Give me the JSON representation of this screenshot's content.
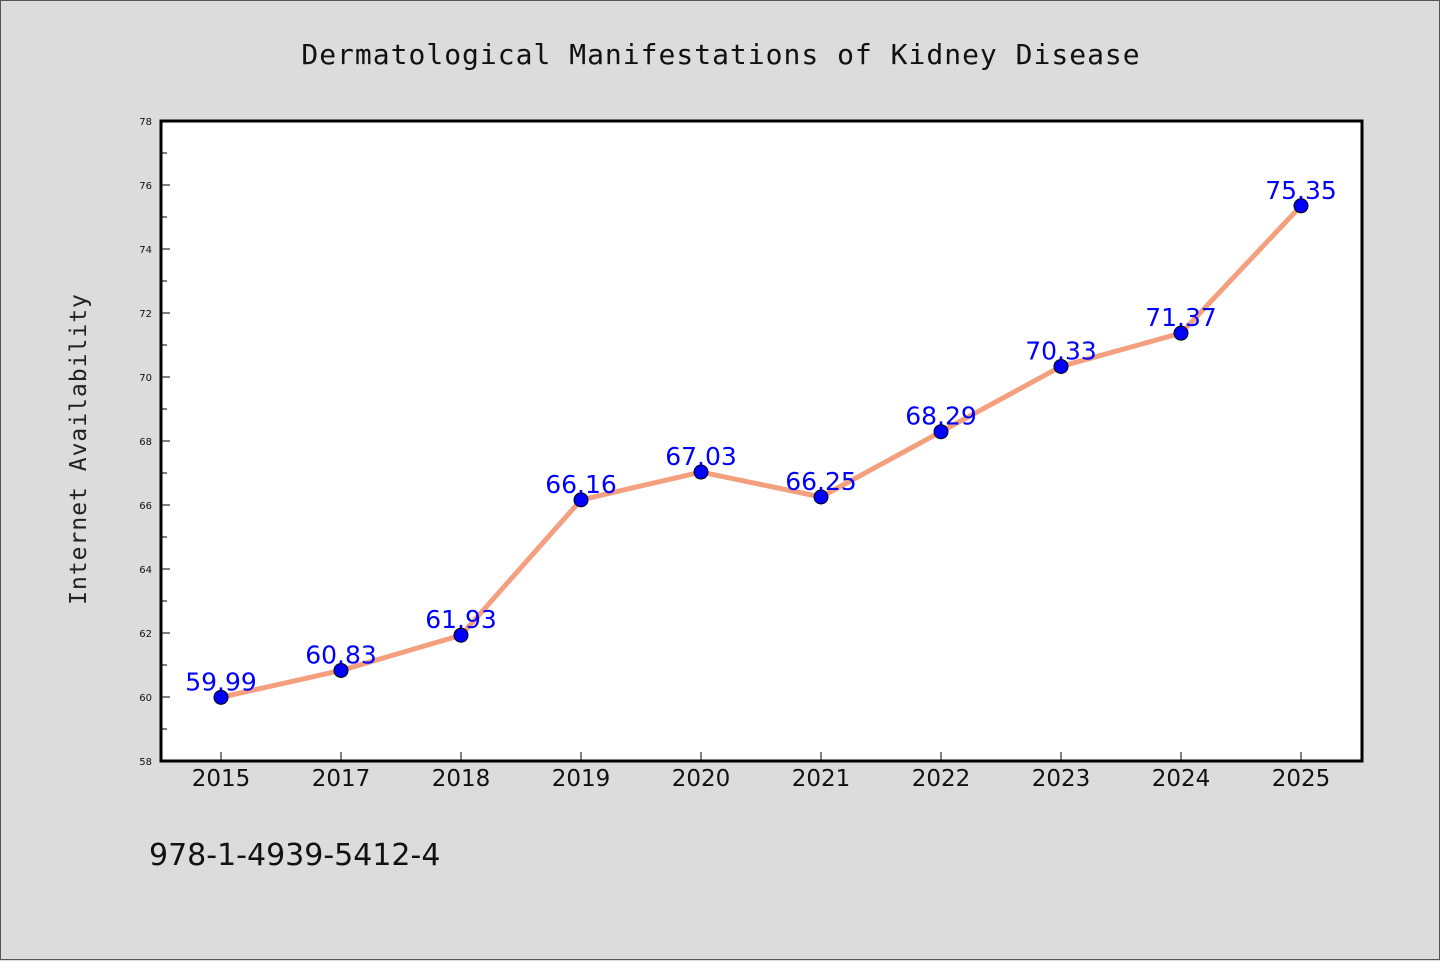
{
  "chart_data": {
    "type": "line",
    "title": "Dermatological Manifestations of Kidney Disease",
    "xlabel": "",
    "ylabel": "Internet Availability",
    "categories": [
      "2015",
      "2017",
      "2018",
      "2019",
      "2020",
      "2021",
      "2022",
      "2023",
      "2024",
      "2025"
    ],
    "series": [
      {
        "values": [
          59.99,
          60.83,
          61.93,
          66.16,
          67.03,
          66.25,
          68.29,
          70.33,
          71.37,
          75.35
        ],
        "labels": [
          "59.99",
          "60.83",
          "61.93",
          "66.16",
          "67.03",
          "66.25",
          "68.29",
          "70.33",
          "71.37",
          "75.35"
        ],
        "line_color": "#f4a07f",
        "marker_color": "#0000ff"
      }
    ],
    "ylim": [
      58,
      78
    ],
    "yticks": [
      "58",
      "60",
      "62",
      "64",
      "66",
      "68",
      "70",
      "72",
      "74",
      "76",
      "78"
    ],
    "grid": false,
    "legend": "none"
  },
  "footer": {
    "isbn": "978-1-4939-5412-4"
  },
  "colors": {
    "background": "#dcdcdc",
    "plot_area": "#ffffff",
    "line": "#f4a07f",
    "marker": "#0000ff",
    "data_label": "#0000ff"
  }
}
